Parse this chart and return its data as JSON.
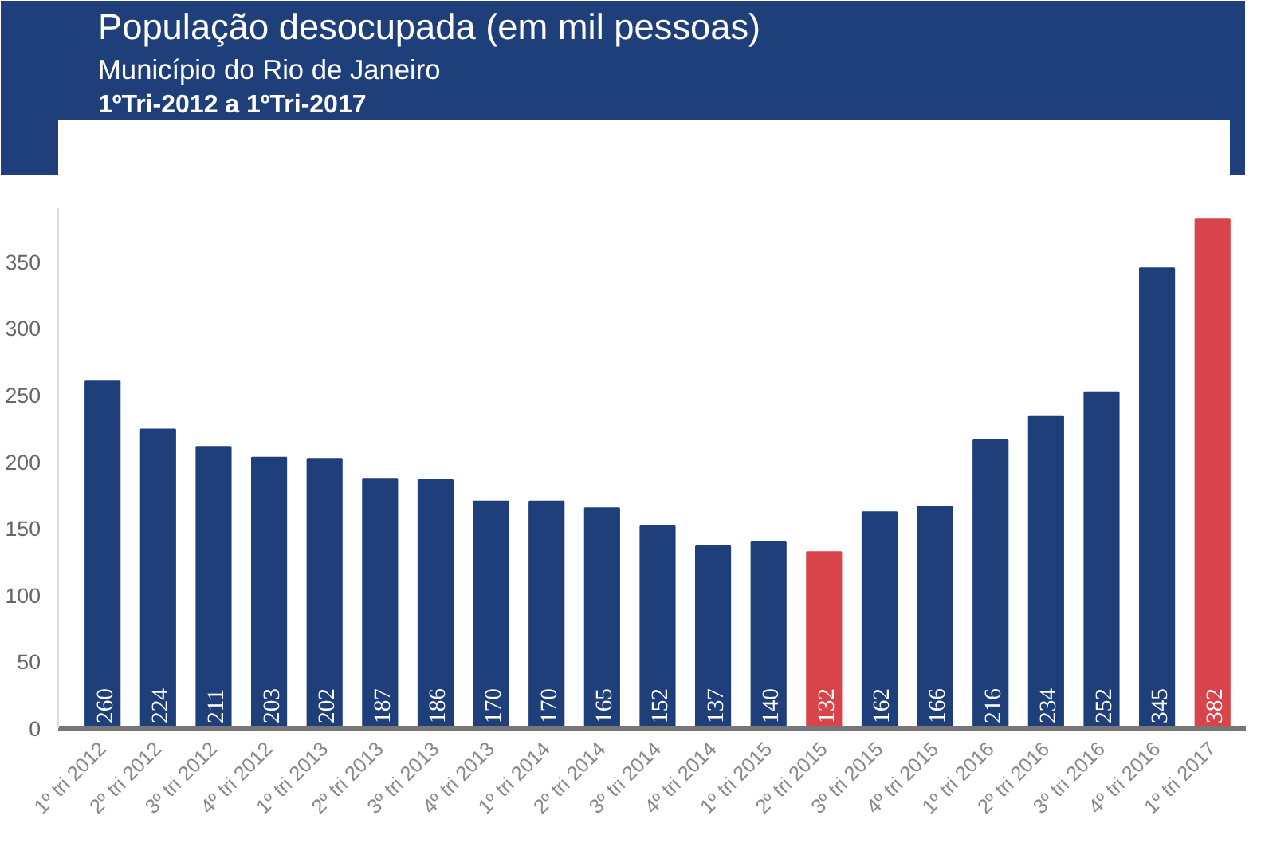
{
  "chart_data": {
    "type": "bar",
    "title": "População desocupada (em mil pessoas)",
    "subtitle": "Município do Rio de Janeiro",
    "annotations": [
      "1ºTri-2012 a 1ºTri-2017"
    ],
    "categories": [
      "1º tri 2012",
      "2º tri 2012",
      "3º tri 2012",
      "4º tri 2012",
      "1º tri 2013",
      "2º tri 2013",
      "3º tri 2013",
      "4º tri 2013",
      "1º tri 2014",
      "2º tri 2014",
      "3º tri 2014",
      "4º tri 2014",
      "1º tri 2015",
      "2º tri 2015",
      "3º tri 2015",
      "4º tri 2015",
      "1º tri 2016",
      "2º tri 2016",
      "3º tri 2016",
      "4º tri 2016",
      "1º tri 2017"
    ],
    "values": [
      260,
      224,
      211,
      203,
      202,
      187,
      186,
      170,
      170,
      165,
      152,
      137,
      140,
      132,
      162,
      166,
      216,
      234,
      252,
      345,
      382
    ],
    "colors": [
      "#1f3f7a",
      "#1f3f7a",
      "#1f3f7a",
      "#1f3f7a",
      "#1f3f7a",
      "#1f3f7a",
      "#1f3f7a",
      "#1f3f7a",
      "#1f3f7a",
      "#1f3f7a",
      "#1f3f7a",
      "#1f3f7a",
      "#1f3f7a",
      "#d9434a",
      "#1f3f7a",
      "#1f3f7a",
      "#1f3f7a",
      "#1f3f7a",
      "#1f3f7a",
      "#1f3f7a",
      "#d9434a"
    ],
    "ylim": [
      0,
      390
    ],
    "yticks": [
      0,
      50,
      100,
      150,
      200,
      250,
      300,
      350
    ],
    "data_labels": true,
    "grid": false
  }
}
